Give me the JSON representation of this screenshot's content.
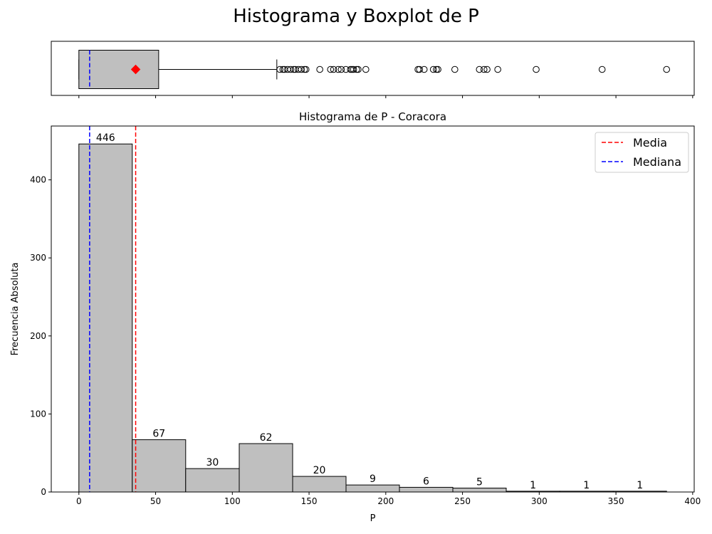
{
  "figure": {
    "title": "Histograma y Boxplot de P"
  },
  "chart_data": [
    {
      "type": "box",
      "orientation": "horizontal",
      "stats": {
        "min": 0,
        "q1": 0,
        "median": 7,
        "q3": 52,
        "whisker_high": 129,
        "mean": 37
      },
      "outliers": [
        131,
        133,
        134,
        136,
        138,
        140,
        141,
        143,
        145,
        147,
        148,
        157,
        164,
        166,
        169,
        171,
        174,
        177,
        178,
        179,
        181,
        182,
        187,
        221,
        222,
        225,
        231,
        233,
        234,
        245,
        261,
        264,
        266,
        273,
        298,
        341,
        383
      ],
      "colors": {
        "box": "#bfbfbf",
        "median": "#0000ff",
        "mean": "#ff0000"
      },
      "xlim": [
        -18,
        401
      ],
      "xticks": [
        0,
        50,
        100,
        150,
        200,
        250,
        300,
        350,
        400
      ]
    },
    {
      "type": "histogram",
      "title": "Histograma de P - Coracora",
      "xlabel": "P",
      "ylabel": "Frecuencia Absoluta",
      "xlim": [
        -18,
        401
      ],
      "ylim": [
        0,
        469
      ],
      "xticks": [
        0,
        50,
        100,
        150,
        200,
        250,
        300,
        350,
        400
      ],
      "yticks": [
        0,
        100,
        200,
        300,
        400
      ],
      "bin_edges": [
        0,
        34.8,
        69.6,
        104.5,
        139.3,
        174.1,
        208.9,
        243.7,
        278.5,
        313.4,
        348.2,
        383
      ],
      "counts": [
        446,
        67,
        30,
        62,
        20,
        9,
        6,
        5,
        1,
        1,
        1
      ],
      "bar_color": "#bfbfbf",
      "mean": 37,
      "median": 7,
      "legend": {
        "position": "top-right",
        "entries": [
          {
            "label": "Media",
            "color": "#ff0000"
          },
          {
            "label": "Mediana",
            "color": "#0000ff"
          }
        ]
      }
    }
  ]
}
